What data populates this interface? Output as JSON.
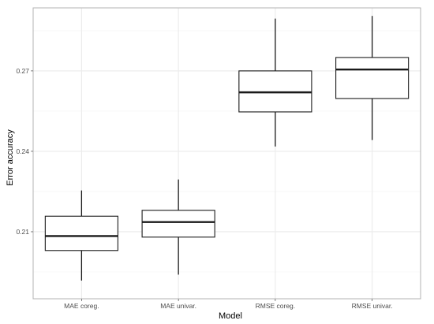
{
  "chart_data": {
    "type": "boxplot",
    "title": "",
    "xlabel": "Model",
    "ylabel": "Error accuracy",
    "categories": [
      "MAE coreg.",
      "MAE univar.",
      "RMSE coreg.",
      "RMSE univar."
    ],
    "boxes": [
      {
        "min": 0.1918,
        "q1": 0.203,
        "median": 0.2084,
        "q3": 0.2158,
        "max": 0.2254
      },
      {
        "min": 0.194,
        "q1": 0.208,
        "median": 0.2136,
        "q3": 0.218,
        "max": 0.2295
      },
      {
        "min": 0.2418,
        "q1": 0.2547,
        "median": 0.262,
        "q3": 0.27,
        "max": 0.2895
      },
      {
        "min": 0.2442,
        "q1": 0.2597,
        "median": 0.2705,
        "q3": 0.275,
        "max": 0.2905
      }
    ],
    "yticks": [
      0.21,
      0.24,
      0.27
    ],
    "ytick_labels": [
      "0.21",
      "0.24",
      "0.27"
    ],
    "ylim": [
      0.185,
      0.2935
    ],
    "grid": true,
    "colors": {
      "panel_border": "#b3b3b3",
      "grid_major": "#ebebeb",
      "grid_minor": "#f4f4f4",
      "box_stroke": "#1a1a1a",
      "box_fill": "#ffffff"
    }
  }
}
